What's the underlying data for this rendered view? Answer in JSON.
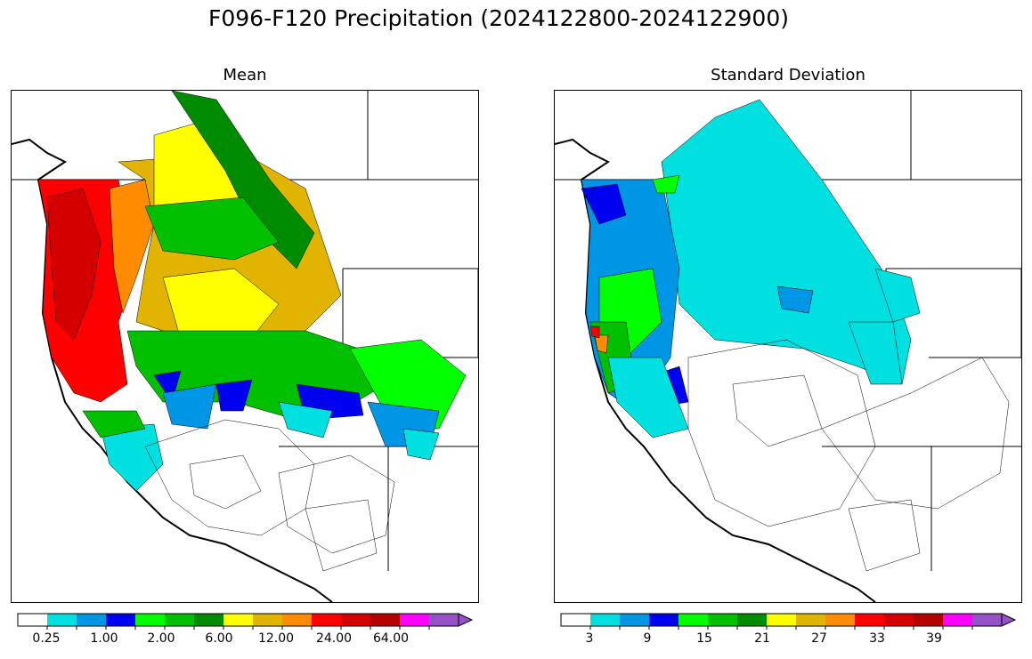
{
  "figure": {
    "suptitle": "F096-F120 Precipitation (2024122800-2024122900)"
  },
  "panels": [
    {
      "id": "mean",
      "title": "Mean",
      "colorbar": {
        "colors": [
          "#ffffff",
          "#00e0e0",
          "#0096e6",
          "#0000f0",
          "#00ff00",
          "#00c000",
          "#008c00",
          "#ffff00",
          "#e0b400",
          "#ff8c00",
          "#ff0000",
          "#d40000",
          "#b40000",
          "#ff00ff",
          "#9650c8"
        ],
        "tick_labels": [
          "0.25",
          "1.00",
          "2.00",
          "6.00",
          "12.00",
          "24.00",
          "64.00"
        ],
        "extend": "max"
      }
    },
    {
      "id": "stddev",
      "title": "Standard Deviation",
      "colorbar": {
        "colors": [
          "#ffffff",
          "#00e0e0",
          "#0096e6",
          "#0000f0",
          "#00ff00",
          "#00c000",
          "#008c00",
          "#ffff00",
          "#e0b400",
          "#ff8c00",
          "#ff0000",
          "#d40000",
          "#b40000",
          "#ff00ff",
          "#9650c8"
        ],
        "tick_labels": [
          "3",
          "9",
          "15",
          "21",
          "27",
          "33",
          "39"
        ],
        "extend": "max"
      }
    }
  ]
}
